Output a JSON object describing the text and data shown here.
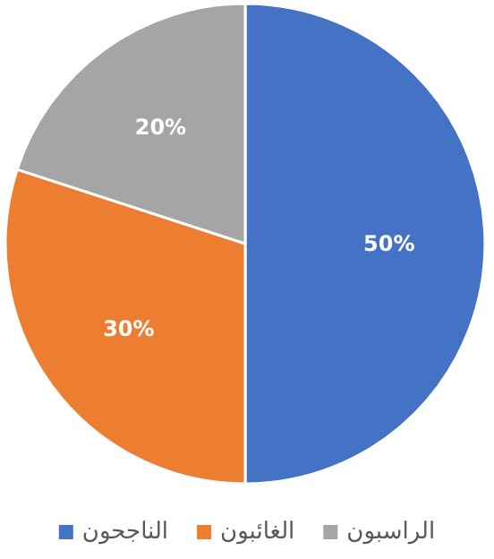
{
  "chart_data": {
    "type": "pie",
    "categories": [
      "الناجحون",
      "الغائبون",
      "الراسبون"
    ],
    "values": [
      50,
      30,
      20
    ],
    "colors": [
      "#4472c4",
      "#ed7d31",
      "#a5a5a5"
    ],
    "value_labels": [
      "50%",
      "30%",
      "20%"
    ],
    "legend": "bottom"
  }
}
